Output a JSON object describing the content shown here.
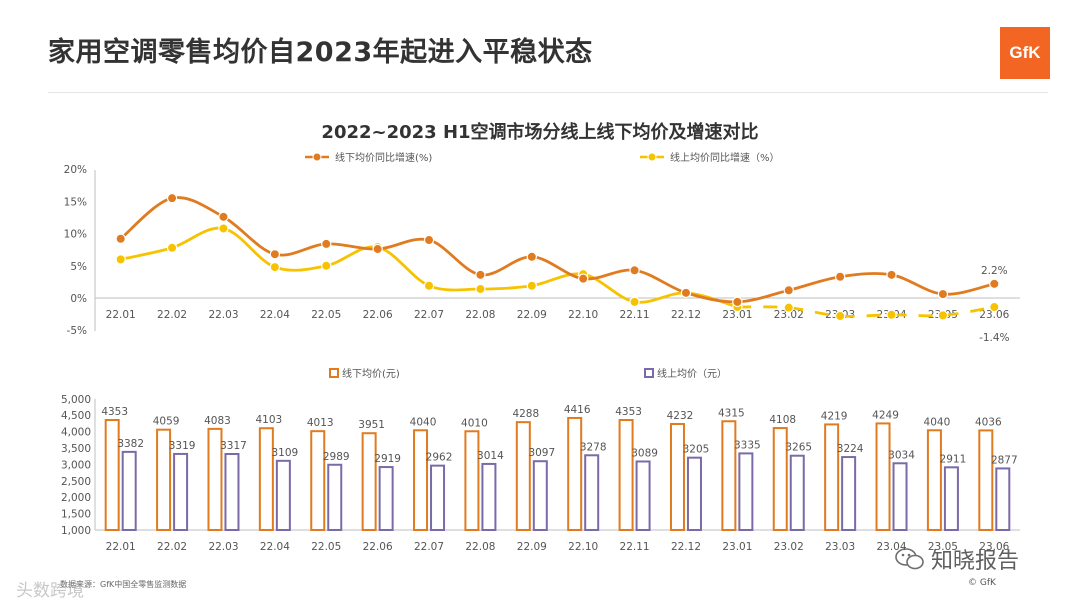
{
  "page_title": "家用空调零售均价自2023年起进入平稳状态",
  "logo_text": "GfK",
  "chart_title": "2022~2023 H1空调市场分线上线下均价及增速对比",
  "colors": {
    "offline": "#e07b1f",
    "online": "#f7c300",
    "online_bar": "#7a6aa8",
    "axis": "#bfbfbf",
    "text": "#555555"
  },
  "chart_data": [
    {
      "type": "line",
      "title": "2022~2023 H1空调市场分线上线下均价及增速对比",
      "categories": [
        "22.01",
        "22.02",
        "22.03",
        "22.04",
        "22.05",
        "22.06",
        "22.07",
        "22.08",
        "22.09",
        "22.10",
        "22.11",
        "22.12",
        "23.01",
        "23.02",
        "23.03",
        "23.04",
        "23.05",
        "23.06"
      ],
      "ylim": [
        -5,
        20
      ],
      "yticks": [
        20,
        15,
        10,
        5,
        0,
        -5
      ],
      "ytick_labels": [
        "20%",
        "15%",
        "10%",
        "5%",
        "0%",
        "-5%"
      ],
      "legend_position": "top",
      "series": [
        {
          "name": "线下均价同比增速(%)",
          "values": [
            9.2,
            15.5,
            12.6,
            6.8,
            8.4,
            7.6,
            9.0,
            3.6,
            6.4,
            3.0,
            4.3,
            0.8,
            -0.6,
            1.2,
            3.3,
            3.6,
            0.6,
            2.2
          ]
        },
        {
          "name": "线上均价同比增速（%）",
          "values": [
            6.0,
            7.8,
            10.8,
            4.8,
            5.0,
            7.9,
            1.9,
            1.4,
            1.9,
            3.7,
            -0.6,
            0.8,
            -1.4,
            -1.5,
            -2.8,
            -2.6,
            -2.7,
            -1.4
          ]
        }
      ],
      "annotations": [
        "2.2%",
        "-1.4%"
      ]
    },
    {
      "type": "bar",
      "categories": [
        "22.01",
        "22.02",
        "22.03",
        "22.04",
        "22.05",
        "22.06",
        "22.07",
        "22.08",
        "22.09",
        "22.10",
        "22.11",
        "22.12",
        "23.01",
        "23.02",
        "23.03",
        "23.04",
        "23.05",
        "23.06"
      ],
      "ylim": [
        1000,
        5000
      ],
      "yticks": [
        5000,
        4500,
        4000,
        3500,
        3000,
        2500,
        2000,
        1500,
        1000
      ],
      "ytick_labels": [
        "5,000",
        "4,500",
        "4,000",
        "3,500",
        "3,000",
        "2,500",
        "2,000",
        "1,500",
        "1,000"
      ],
      "legend_position": "top",
      "series": [
        {
          "name": "线下均价(元)",
          "values": [
            4353,
            4059,
            4083,
            4103,
            4013,
            3951,
            4040,
            4010,
            4288,
            4416,
            4353,
            4232,
            4315,
            4108,
            4219,
            4249,
            4040,
            4036
          ]
        },
        {
          "name": "线上均价（元）",
          "values": [
            3382,
            3319,
            3317,
            3109,
            2989,
            2919,
            2962,
            3014,
            3097,
            3278,
            3089,
            3205,
            3335,
            3265,
            3224,
            3034,
            2911,
            2877
          ]
        }
      ]
    }
  ],
  "footer": {
    "source": "数据来源：GfK中国全零售监测数据",
    "copyright": "© GfK",
    "watermark_right": "知晓报告",
    "watermark_left": "头数跨境"
  }
}
